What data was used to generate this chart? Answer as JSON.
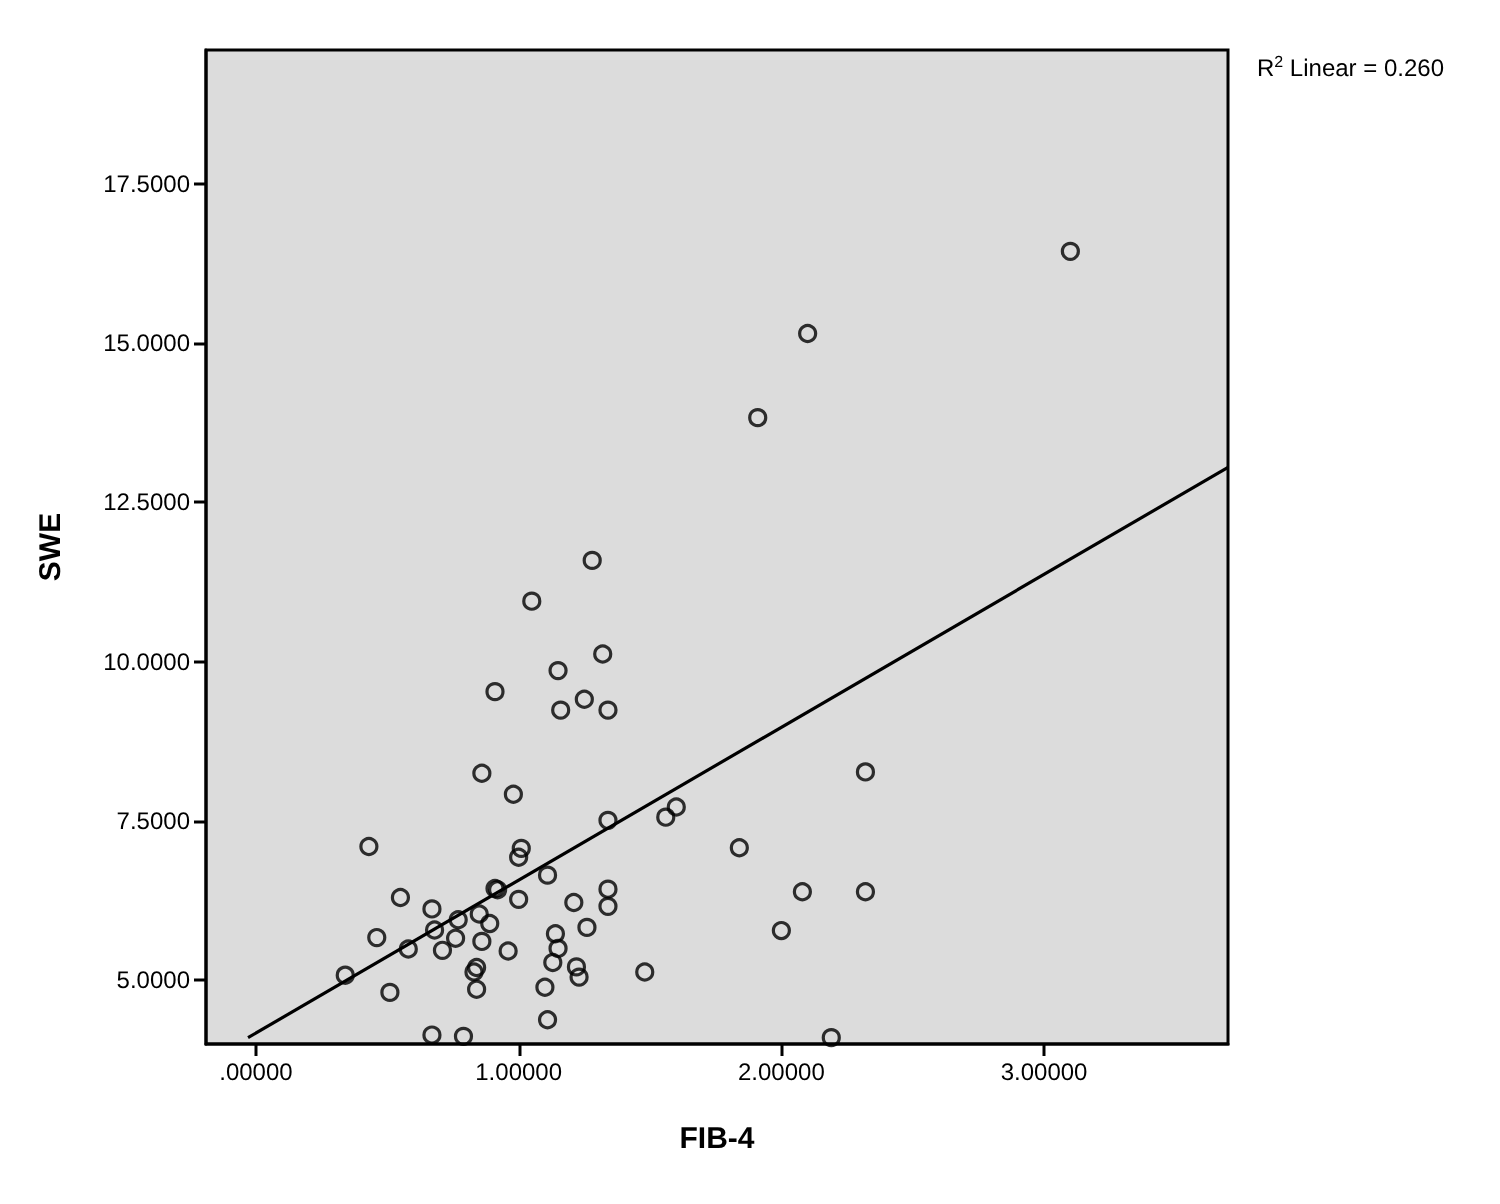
{
  "chart_data": {
    "type": "scatter",
    "xlabel": "FIB-4",
    "ylabel": "SWE",
    "annotations": [
      "R$^{2}$ Linear = 0.260"
    ],
    "xlim": [
      -0.19,
      3.7
    ],
    "ylim": [
      4.0,
      19.6
    ],
    "xticks": [
      {
        "value": 0,
        "label": ".00000"
      },
      {
        "value": 1,
        "label": "1.00000"
      },
      {
        "value": 2,
        "label": "2.00000"
      },
      {
        "value": 3,
        "label": "3.00000"
      }
    ],
    "yticks": [
      {
        "value": 5,
        "label": "5.0000"
      },
      {
        "value": 7.5,
        "label": "7.5000"
      },
      {
        "value": 10,
        "label": "10.0000"
      },
      {
        "value": 12.5,
        "label": "12.5000"
      },
      {
        "value": 15,
        "label": "15.0000"
      },
      {
        "value": 17.5,
        "label": "17.5000"
      }
    ],
    "grid": false,
    "marker": "circle",
    "series": [
      {
        "type": "scatter",
        "color": "#000000",
        "x": [
          1.28,
          1.05,
          1.32,
          1.15,
          0.91,
          1.25,
          1.16,
          1.34,
          0.86,
          0.98,
          1.34,
          1.56,
          1.6,
          0.43,
          1.01,
          1.0,
          1.11,
          0.55,
          0.91,
          0.92,
          1.0,
          1.34,
          1.34,
          1.21,
          0.67,
          0.85,
          0.77,
          0.89,
          1.26,
          0.68,
          0.46,
          0.76,
          1.14,
          0.86,
          0.58,
          0.71,
          0.96,
          1.15,
          1.13,
          0.34,
          0.84,
          0.83,
          1.22,
          1.23,
          1.48,
          0.51,
          0.84,
          1.1,
          1.11,
          0.67,
          0.79,
          3.1,
          2.1,
          1.91,
          2.32,
          2.08,
          2.32,
          2.0,
          2.19,
          1.84
        ],
        "values": [
          11.59,
          10.95,
          10.12,
          9.86,
          9.53,
          9.41,
          9.24,
          9.24,
          8.25,
          7.92,
          7.51,
          7.56,
          7.72,
          7.1,
          7.07,
          6.93,
          6.65,
          6.3,
          6.44,
          6.42,
          6.27,
          6.43,
          6.16,
          6.22,
          6.12,
          6.04,
          5.95,
          5.89,
          5.83,
          5.79,
          5.67,
          5.66,
          5.73,
          5.61,
          5.49,
          5.47,
          5.46,
          5.5,
          5.28,
          5.08,
          5.2,
          5.13,
          5.21,
          5.05,
          5.13,
          4.81,
          4.86,
          4.89,
          4.38,
          4.14,
          4.12,
          16.44,
          15.15,
          13.83,
          8.27,
          6.39,
          6.39,
          5.78,
          4.1,
          7.08
        ]
      },
      {
        "type": "line",
        "color": "#000000",
        "x": [
          -0.03,
          3.7
        ],
        "values": [
          4.1,
          13.05
        ],
        "marker": "none",
        "line_style": "solid"
      }
    ]
  }
}
